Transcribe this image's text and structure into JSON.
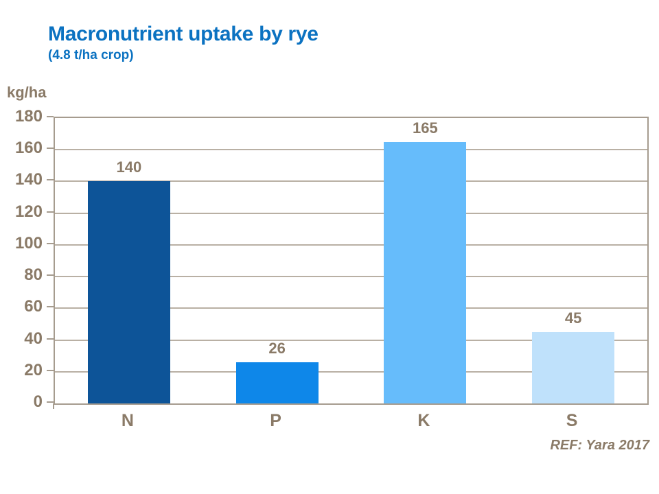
{
  "header": {
    "title": "Macronutrient uptake by rye",
    "subtitle": "(4.8 t/ha crop)",
    "title_color": "#0b72c1"
  },
  "footer": {
    "reference": "REF: Yara 2017"
  },
  "chart_data": {
    "type": "bar",
    "title": "Macronutrient uptake by rye",
    "subtitle": "(4.8 t/ha crop)",
    "unit_label": "kg/ha",
    "categories": [
      "N",
      "P",
      "K",
      "S"
    ],
    "values": [
      140,
      26,
      165,
      45
    ],
    "value_labels": [
      "140",
      "26",
      "165",
      "45"
    ],
    "bar_colors": [
      "#0d5498",
      "#0e87e9",
      "#66bcfb",
      "#bfe1fb"
    ],
    "ylim": [
      0,
      180
    ],
    "yticks": [
      0,
      20,
      40,
      60,
      80,
      100,
      120,
      140,
      160,
      180
    ],
    "grid": true,
    "legend": "none",
    "text_color": "#8a7a67",
    "grid_color": "#b9b0a4",
    "axis_color": "#a69c8f",
    "reference": "REF: Yara 2017"
  }
}
